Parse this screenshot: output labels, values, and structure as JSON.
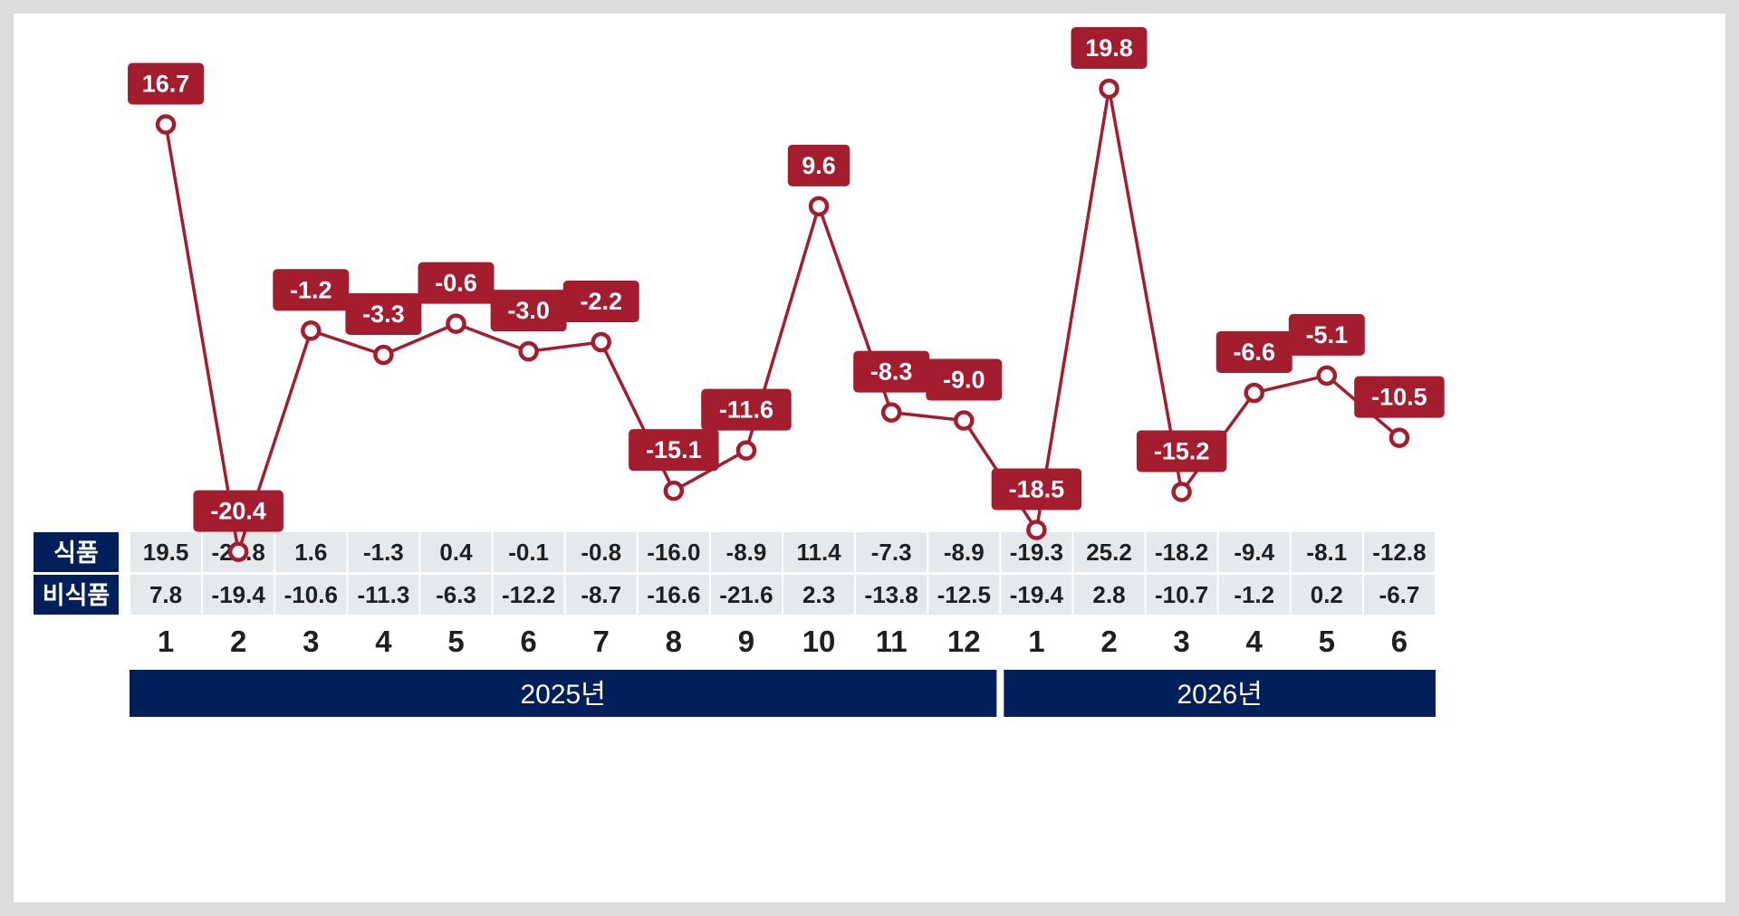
{
  "colors": {
    "line": "#a31d2e",
    "label_bg": "#a31d2e",
    "navy": "#001f5b",
    "cell_bg": "#e6e9ec",
    "background": "#ffffff",
    "frame": "#dcdcdc"
  },
  "chart_data": {
    "type": "line",
    "categories": [
      "1",
      "2",
      "3",
      "4",
      "5",
      "6",
      "7",
      "8",
      "9",
      "10",
      "11",
      "12",
      "1",
      "2",
      "3",
      "4",
      "5",
      "6"
    ],
    "series": [
      {
        "values": [
          16.7,
          -20.4,
          -1.2,
          -3.3,
          -0.6,
          -3.0,
          -2.2,
          -15.1,
          -11.6,
          9.6,
          -8.3,
          -9.0,
          -18.5,
          19.8,
          -15.2,
          -6.6,
          -5.1,
          -10.5
        ],
        "labels": [
          "16.7",
          "-20.4",
          "-1.2",
          "-3.3",
          "-0.6",
          "-3.0",
          "-2.2",
          "-15.1",
          "-11.6",
          "9.6",
          "-8.3",
          "-9.0",
          "-18.5",
          "19.8",
          "-15.2",
          "-6.6",
          "-5.1",
          "-10.5"
        ]
      }
    ],
    "ylim": [
      -22,
      22
    ],
    "grid": false,
    "table": {
      "rows": [
        {
          "name": "식품",
          "values": [
            "19.5",
            "-21.8",
            "1.6",
            "-1.3",
            "0.4",
            "-0.1",
            "-0.8",
            "-16.0",
            "-8.9",
            "11.4",
            "-7.3",
            "-8.9",
            "-19.3",
            "25.2",
            "-18.2",
            "-9.4",
            "-8.1",
            "-12.8"
          ]
        },
        {
          "name": "비식품",
          "values": [
            "7.8",
            "-19.4",
            "-10.6",
            "-11.3",
            "-6.3",
            "-12.2",
            "-8.7",
            "-16.6",
            "-21.6",
            "2.3",
            "-13.8",
            "-12.5",
            "-19.4",
            "2.8",
            "-10.7",
            "-1.2",
            "0.2",
            "-6.7"
          ]
        }
      ]
    },
    "year_groups": [
      {
        "label": "2025년",
        "count": 12
      },
      {
        "label": "2026년",
        "count": 6
      }
    ]
  }
}
